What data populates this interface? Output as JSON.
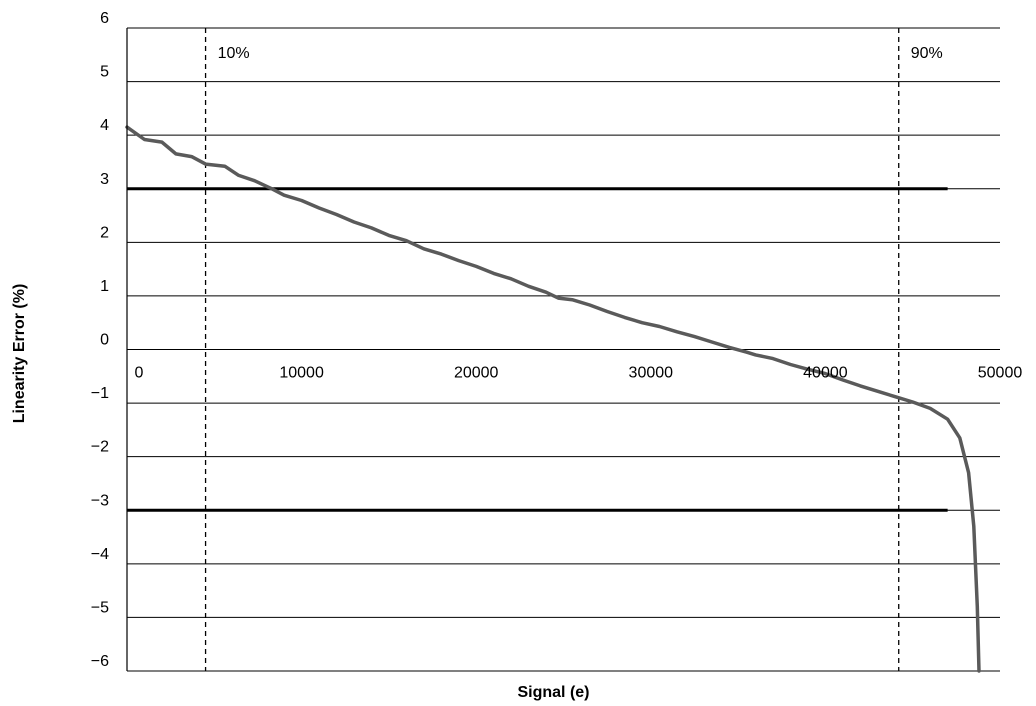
{
  "chart_data": {
    "type": "line",
    "xlabel": "Signal (e)",
    "ylabel": "Linearity Error (%)",
    "xlim": [
      0,
      50000
    ],
    "ylim": [
      -6,
      6
    ],
    "x_ticks": [
      0,
      10000,
      20000,
      30000,
      40000,
      50000
    ],
    "x_tick_labels": [
      "0",
      "10000",
      "20000",
      "30000",
      "40000",
      "50000"
    ],
    "y_ticks": [
      -6,
      -5,
      -4,
      -3,
      -2,
      -1,
      0,
      1,
      2,
      3,
      4,
      5,
      6
    ],
    "y_tick_labels": [
      "−6",
      "−5",
      "−4",
      "−3",
      "−2",
      "−1",
      "0",
      "1",
      "2",
      "3",
      "4",
      "5",
      "6"
    ],
    "grid": "horizontal",
    "legend": "none",
    "series": [
      {
        "color": "#5a5a5a",
        "points": [
          [
            0,
            4.15
          ],
          [
            1000,
            3.92
          ],
          [
            2000,
            3.87
          ],
          [
            2800,
            3.65
          ],
          [
            3700,
            3.6
          ],
          [
            4500,
            3.46
          ],
          [
            5600,
            3.42
          ],
          [
            6400,
            3.25
          ],
          [
            7300,
            3.15
          ],
          [
            8300,
            3.0
          ],
          [
            9000,
            2.88
          ],
          [
            10000,
            2.78
          ],
          [
            11000,
            2.64
          ],
          [
            12000,
            2.52
          ],
          [
            13000,
            2.38
          ],
          [
            14000,
            2.27
          ],
          [
            15000,
            2.13
          ],
          [
            16000,
            2.03
          ],
          [
            17000,
            1.88
          ],
          [
            18000,
            1.78
          ],
          [
            19000,
            1.66
          ],
          [
            20000,
            1.55
          ],
          [
            21000,
            1.42
          ],
          [
            22000,
            1.32
          ],
          [
            23000,
            1.18
          ],
          [
            24000,
            1.07
          ],
          [
            24700,
            0.96
          ],
          [
            25500,
            0.93
          ],
          [
            26500,
            0.83
          ],
          [
            27500,
            0.71
          ],
          [
            28500,
            0.6
          ],
          [
            29500,
            0.5
          ],
          [
            30500,
            0.43
          ],
          [
            31500,
            0.33
          ],
          [
            32500,
            0.24
          ],
          [
            33500,
            0.14
          ],
          [
            34500,
            0.04
          ],
          [
            35500,
            -0.05
          ],
          [
            36000,
            -0.1
          ],
          [
            37000,
            -0.17
          ],
          [
            38000,
            -0.28
          ],
          [
            39000,
            -0.37
          ],
          [
            40000,
            -0.45
          ],
          [
            41000,
            -0.57
          ],
          [
            42000,
            -0.68
          ],
          [
            43000,
            -0.78
          ],
          [
            44000,
            -0.88
          ],
          [
            45000,
            -0.98
          ],
          [
            46000,
            -1.1
          ],
          [
            47000,
            -1.3
          ],
          [
            47700,
            -1.65
          ],
          [
            48200,
            -2.3
          ],
          [
            48500,
            -3.3
          ],
          [
            48700,
            -4.8
          ],
          [
            48800,
            -6.0
          ]
        ]
      }
    ],
    "reference_lines": [
      {
        "orientation": "horizontal",
        "value": 3,
        "style": "solid",
        "x_start": 0,
        "x_end": 47000
      },
      {
        "orientation": "horizontal",
        "value": -3,
        "style": "solid",
        "x_start": 0,
        "x_end": 47000
      },
      {
        "orientation": "vertical",
        "value": 4500,
        "style": "dashed",
        "label": "10%"
      },
      {
        "orientation": "vertical",
        "value": 44200,
        "style": "dashed",
        "label": "90%"
      }
    ]
  }
}
